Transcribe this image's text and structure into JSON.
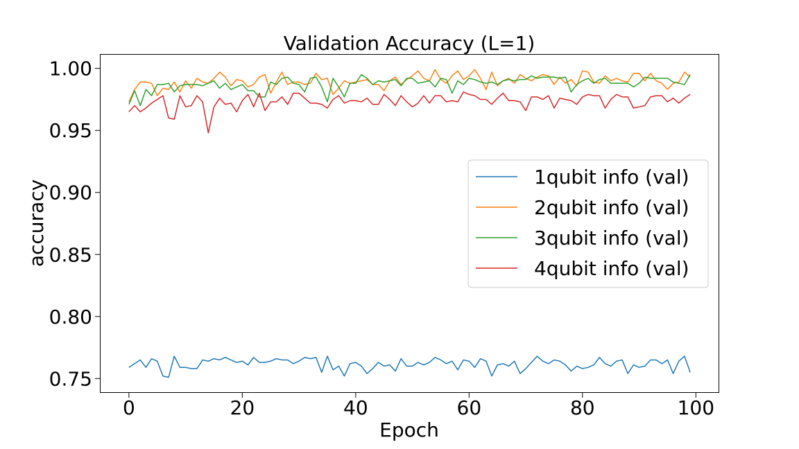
{
  "chart_data": {
    "type": "line",
    "title": "Validation Accuracy (L=1)",
    "xlabel": "Epoch",
    "ylabel": "accuracy",
    "xlim": [
      -5,
      104
    ],
    "ylim": [
      0.739,
      1.011
    ],
    "xticks": [
      0,
      20,
      40,
      60,
      80,
      100
    ],
    "yticks": [
      0.75,
      0.8,
      0.85,
      0.9,
      0.95,
      1.0
    ],
    "ytick_labels": [
      "0.75",
      "0.80",
      "0.85",
      "0.90",
      "0.95",
      "1.00"
    ],
    "xtick_labels": [
      "0",
      "20",
      "40",
      "60",
      "80",
      "100"
    ],
    "grid": false,
    "legend_position": "center-right",
    "x_start": 0,
    "series": [
      {
        "name": "1qubit info (val)",
        "color": "#1f77b4",
        "values": [
          0.759,
          0.762,
          0.765,
          0.759,
          0.766,
          0.764,
          0.752,
          0.751,
          0.768,
          0.759,
          0.759,
          0.758,
          0.758,
          0.765,
          0.764,
          0.766,
          0.765,
          0.767,
          0.765,
          0.763,
          0.764,
          0.761,
          0.767,
          0.763,
          0.763,
          0.764,
          0.766,
          0.765,
          0.765,
          0.762,
          0.764,
          0.767,
          0.766,
          0.767,
          0.755,
          0.768,
          0.757,
          0.76,
          0.752,
          0.762,
          0.763,
          0.76,
          0.754,
          0.758,
          0.763,
          0.76,
          0.761,
          0.756,
          0.766,
          0.76,
          0.76,
          0.763,
          0.761,
          0.763,
          0.767,
          0.765,
          0.762,
          0.764,
          0.757,
          0.765,
          0.764,
          0.759,
          0.766,
          0.764,
          0.752,
          0.761,
          0.762,
          0.76,
          0.764,
          0.754,
          0.758,
          0.763,
          0.768,
          0.764,
          0.762,
          0.765,
          0.764,
          0.761,
          0.756,
          0.76,
          0.758,
          0.759,
          0.761,
          0.767,
          0.762,
          0.76,
          0.764,
          0.765,
          0.754,
          0.761,
          0.759,
          0.76,
          0.765,
          0.765,
          0.762,
          0.765,
          0.754,
          0.764,
          0.768,
          0.755
        ]
      },
      {
        "name": "2qubit info (val)",
        "color": "#ff7f0e",
        "values": [
          0.973,
          0.983,
          0.989,
          0.989,
          0.988,
          0.978,
          0.984,
          0.983,
          0.989,
          0.981,
          0.99,
          0.984,
          0.992,
          0.989,
          0.988,
          0.992,
          0.997,
          0.993,
          0.986,
          0.991,
          0.99,
          0.985,
          0.987,
          0.993,
          0.995,
          0.98,
          0.989,
          0.997,
          0.987,
          0.989,
          0.989,
          0.987,
          0.988,
          0.996,
          0.991,
          0.992,
          0.979,
          0.984,
          0.99,
          0.988,
          0.989,
          0.99,
          0.991,
          0.987,
          0.987,
          0.982,
          0.99,
          0.993,
          0.987,
          0.991,
          0.994,
          0.998,
          0.992,
          0.99,
          0.999,
          0.991,
          0.988,
          0.994,
          0.998,
          0.991,
          0.994,
          0.999,
          0.992,
          0.983,
          0.997,
          0.986,
          0.99,
          0.992,
          0.988,
          0.995,
          0.992,
          0.99,
          0.993,
          0.995,
          0.994,
          0.987,
          0.993,
          0.988,
          0.991,
          0.986,
          0.998,
          0.997,
          0.989,
          0.988,
          0.994,
          0.99,
          0.992,
          0.99,
          0.989,
          0.996,
          0.996,
          0.99,
          0.996,
          0.99,
          0.988,
          0.983,
          0.988,
          0.989,
          0.997,
          0.993
        ]
      },
      {
        "name": "3qubit info (val)",
        "color": "#2ca02c",
        "values": [
          0.971,
          0.982,
          0.97,
          0.983,
          0.978,
          0.987,
          0.987,
          0.988,
          0.981,
          0.986,
          0.987,
          0.987,
          0.987,
          0.986,
          0.988,
          0.99,
          0.984,
          0.988,
          0.983,
          0.985,
          0.987,
          0.982,
          0.982,
          0.977,
          0.977,
          0.989,
          0.987,
          0.992,
          0.993,
          0.988,
          0.987,
          0.981,
          0.992,
          0.993,
          0.985,
          0.973,
          0.992,
          0.985,
          0.977,
          0.988,
          0.988,
          0.995,
          0.992,
          0.987,
          0.99,
          0.989,
          0.99,
          0.991,
          0.986,
          0.992,
          0.992,
          0.988,
          0.989,
          0.99,
          0.985,
          0.992,
          0.991,
          0.98,
          0.99,
          0.987,
          0.992,
          0.991,
          0.989,
          0.988,
          0.989,
          0.987,
          0.99,
          0.991,
          0.99,
          0.991,
          0.991,
          0.994,
          0.992,
          0.993,
          0.993,
          0.993,
          0.992,
          0.993,
          0.981,
          0.987,
          0.99,
          0.992,
          0.988,
          0.991,
          0.992,
          0.988,
          0.988,
          0.988,
          0.988,
          0.985,
          0.988,
          0.993,
          0.992,
          0.992,
          0.992,
          0.992,
          0.989,
          0.988,
          0.987,
          0.995
        ]
      },
      {
        "name": "4qubit info (val)",
        "color": "#d62728",
        "values": [
          0.965,
          0.97,
          0.965,
          0.968,
          0.972,
          0.975,
          0.978,
          0.96,
          0.959,
          0.978,
          0.969,
          0.97,
          0.978,
          0.973,
          0.948,
          0.969,
          0.976,
          0.971,
          0.972,
          0.965,
          0.974,
          0.979,
          0.969,
          0.98,
          0.966,
          0.973,
          0.973,
          0.977,
          0.971,
          0.98,
          0.98,
          0.976,
          0.972,
          0.972,
          0.971,
          0.968,
          0.975,
          0.978,
          0.972,
          0.974,
          0.974,
          0.973,
          0.976,
          0.971,
          0.971,
          0.979,
          0.975,
          0.97,
          0.978,
          0.973,
          0.969,
          0.972,
          0.978,
          0.972,
          0.978,
          0.978,
          0.973,
          0.974,
          0.973,
          0.981,
          0.979,
          0.978,
          0.975,
          0.975,
          0.971,
          0.976,
          0.98,
          0.974,
          0.974,
          0.973,
          0.966,
          0.977,
          0.977,
          0.975,
          0.978,
          0.968,
          0.976,
          0.975,
          0.974,
          0.971,
          0.977,
          0.979,
          0.978,
          0.978,
          0.968,
          0.975,
          0.979,
          0.977,
          0.977,
          0.968,
          0.969,
          0.97,
          0.977,
          0.978,
          0.978,
          0.973,
          0.976,
          0.972,
          0.976,
          0.979
        ]
      }
    ]
  }
}
